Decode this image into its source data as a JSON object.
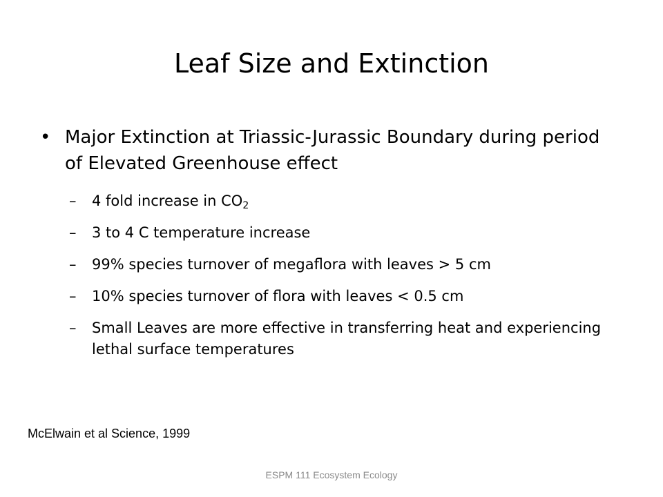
{
  "slide": {
    "title": "Leaf Size and Extinction",
    "main_bullet": {
      "symbol": "•",
      "text": "Major Extinction at Triassic-Jurassic Boundary during period of Elevated Greenhouse effect"
    },
    "sub_bullets": [
      {
        "dash": "–",
        "text": "4 fold increase in CO",
        "subscript": "2"
      },
      {
        "dash": "–",
        "text": "3 to 4 C temperature increase"
      },
      {
        "dash": "–",
        "text": "99% species turnover of megaflora with leaves > 5 cm"
      },
      {
        "dash": "–",
        "text": "10% species turnover of flora with leaves < 0.5 cm"
      },
      {
        "dash": "–",
        "text": "Small Leaves are more effective in transferring heat and experiencing lethal surface temperatures"
      }
    ],
    "citation": "McElwain et al Science, 1999",
    "footer": "ESPM 111 Ecosystem Ecology"
  }
}
